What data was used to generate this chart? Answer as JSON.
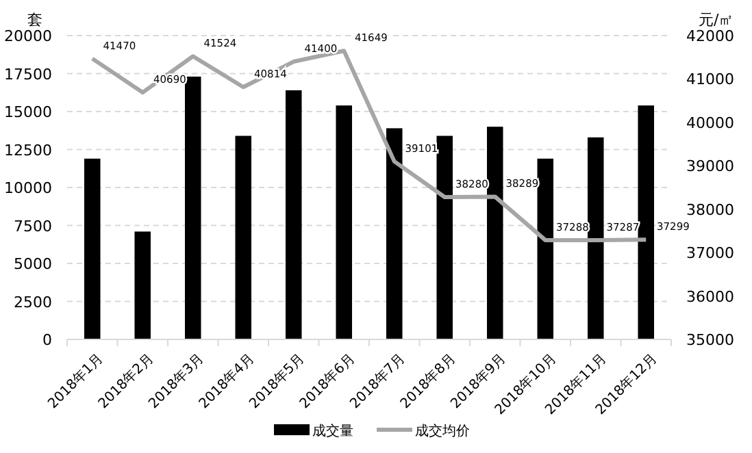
{
  "chart_data": {
    "type": "bar",
    "ylabel": "套",
    "y2label": "元/㎡",
    "categories": [
      "2018年1月",
      "2018年2月",
      "2018年3月",
      "2018年4月",
      "2018年5月",
      "2018年6月",
      "2018年7月",
      "2018年8月",
      "2018年9月",
      "2018年10月",
      "2018年11月",
      "2018年12月"
    ],
    "series": [
      {
        "name": "成交量",
        "color": "#000000",
        "values": [
          11900,
          7100,
          17300,
          13400,
          16400,
          15400,
          13900,
          13400,
          14000,
          11900,
          13300,
          15400
        ]
      },
      {
        "name": "成交均价",
        "type": "line",
        "axis": "y2",
        "color": "#a6a6a6",
        "data_labels": true,
        "values": [
          41470,
          40690,
          41524,
          40814,
          41400,
          41649,
          39101,
          38280,
          38289,
          37288,
          37287,
          37299
        ]
      }
    ],
    "ylim": [
      0,
      20000
    ],
    "yticks": [
      0,
      2500,
      5000,
      7500,
      10000,
      12500,
      15000,
      17500,
      20000
    ],
    "y2lim": [
      35000,
      42000
    ],
    "y2ticks": [
      35000,
      36000,
      37000,
      38000,
      39000,
      40000,
      41000,
      42000
    ],
    "grid": "y",
    "legend": "bottom",
    "marker": "none",
    "line_style": "solid"
  }
}
